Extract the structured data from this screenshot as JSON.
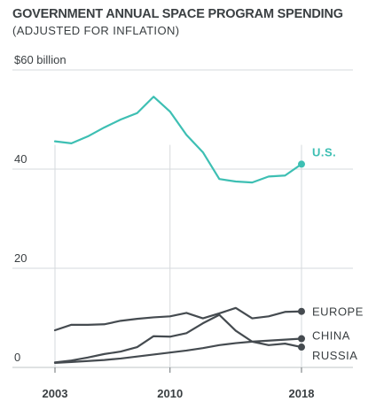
{
  "chart_data": {
    "type": "line",
    "title": "GOVERNMENT ANNUAL SPACE PROGRAM SPENDING",
    "subtitle": "(ADJUSTED FOR INFLATION)",
    "ylabel": "",
    "xlabel": "",
    "ylim": [
      0,
      60
    ],
    "xlim": [
      2003,
      2021
    ],
    "y_ticks": [
      {
        "value": 0,
        "label": "0"
      },
      {
        "value": 20,
        "label": "20"
      },
      {
        "value": 40,
        "label": "40"
      },
      {
        "value": 60,
        "label": "$60 billion"
      }
    ],
    "x_ticks": [
      {
        "value": 2003,
        "label": "2003"
      },
      {
        "value": 2010,
        "label": "2010"
      },
      {
        "value": 2018,
        "label": "2018"
      }
    ],
    "grid": "horizontal",
    "series": [
      {
        "name": "U.S.",
        "color": "#3dbfb3",
        "x": [
          2003,
          2004,
          2005,
          2006,
          2007,
          2008,
          2009,
          2010,
          2011,
          2012,
          2013,
          2014,
          2015,
          2016,
          2017,
          2018
        ],
        "values": [
          45.6,
          45.2,
          46.6,
          48.4,
          50.0,
          51.3,
          54.6,
          51.6,
          46.9,
          43.4,
          38.0,
          37.5,
          37.3,
          38.5,
          38.7,
          41.0
        ]
      },
      {
        "name": "EUROPE",
        "color": "#454b50",
        "x": [
          2003,
          2004,
          2005,
          2006,
          2007,
          2008,
          2009,
          2010,
          2011,
          2012,
          2013,
          2014,
          2015,
          2016,
          2017,
          2018
        ],
        "values": [
          7.5,
          8.6,
          8.6,
          8.7,
          9.4,
          9.8,
          10.1,
          10.3,
          11.0,
          9.9,
          10.9,
          12.0,
          9.9,
          10.3,
          11.2,
          11.3
        ]
      },
      {
        "name": "CHINA",
        "color": "#454b50",
        "x": [
          2003,
          2004,
          2005,
          2006,
          2007,
          2008,
          2009,
          2010,
          2011,
          2012,
          2013,
          2014,
          2015,
          2016,
          2017,
          2018
        ],
        "values": [
          0.9,
          1.1,
          1.3,
          1.5,
          1.8,
          2.2,
          2.6,
          3.0,
          3.4,
          3.9,
          4.5,
          4.9,
          5.2,
          5.4,
          5.6,
          5.8
        ]
      },
      {
        "name": "RUSSIA",
        "color": "#454b50",
        "x": [
          2003,
          2004,
          2005,
          2006,
          2007,
          2008,
          2009,
          2010,
          2011,
          2012,
          2013,
          2014,
          2015,
          2016,
          2017,
          2018
        ],
        "values": [
          1.0,
          1.4,
          2.0,
          2.7,
          3.2,
          4.1,
          6.3,
          6.2,
          6.9,
          8.9,
          10.6,
          7.4,
          5.2,
          4.5,
          4.8,
          4.1
        ]
      }
    ]
  }
}
